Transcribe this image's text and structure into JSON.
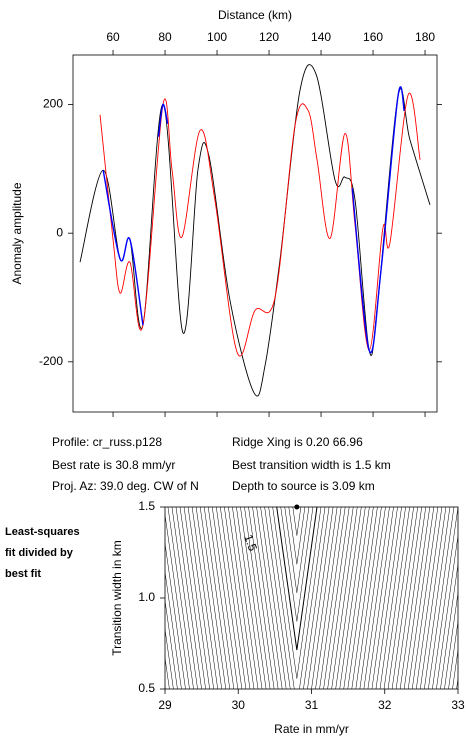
{
  "chart_data": [
    {
      "type": "line",
      "xlabel": "Distance (km)",
      "ylabel": "Anomaly amplitude",
      "xlim": [
        44.6,
        184.6
      ],
      "ylim": [
        -278,
        277
      ],
      "xticks": [
        60,
        80,
        100,
        120,
        140,
        160,
        180
      ],
      "yticks": [
        -200,
        0,
        200
      ],
      "series": [
        {
          "color": "#000000",
          "x": [
            47.3,
            56.2,
            62.7,
            66.5,
            71.5,
            79.2,
            86.9,
            92.7,
            96.9,
            105,
            114.2,
            118.5,
            124.2,
            131.9,
            138.1,
            145.4,
            149.2,
            153.1,
            158.5,
            161.9,
            169.6,
            174.2,
            181.9
          ],
          "values": [
            -45,
            98,
            -40,
            -10,
            -143,
            200,
            -155,
            100,
            120,
            -105,
            -248,
            -205,
            -42,
            222,
            247,
            82,
            87,
            51,
            -182,
            -104,
            213,
            145,
            44
          ]
        },
        {
          "color": "#ff0000",
          "x": [
            55,
            60,
            62.7,
            66.5,
            71.5,
            79.2,
            82.7,
            86.5,
            93.5,
            99.2,
            107.7,
            114.6,
            122.3,
            130,
            135,
            138.5,
            143.5,
            149.2,
            153.1,
            158.5,
            163.8,
            166.5,
            173.5,
            178.1
          ],
          "values": [
            184,
            -10,
            -93,
            -45,
            -143,
            200,
            98,
            -6,
            160,
            51,
            -185,
            -120,
            -100,
            168,
            191,
            113,
            -8,
            155,
            12,
            -182,
            8,
            -15,
            215,
            114
          ]
        },
        {
          "color": "#0000ff",
          "x": [
            56.2,
            62.7,
            66.5,
            71.5,
            72,
            77.5,
            79.2,
            81,
            82,
            152,
            158.5,
            163,
            169.6,
            172
          ],
          "values": [
            98,
            -40,
            -10,
            -143,
            null,
            150,
            200,
            170,
            null,
            70,
            -182,
            -60,
            213,
            190
          ]
        }
      ],
      "annotations": [
        "Profile: cr_russ.p128",
        "Best rate is 30.8 mm/yr",
        "Proj. Az: 39.0 deg. CW of N",
        "Ridge Xing is 0.20 66.96",
        "Best transition width is 1.5 km",
        "Depth to source is   3.09 km"
      ]
    },
    {
      "type": "contour",
      "xlabel": "Rate in mm/yr",
      "ylabel": "Transition width in km",
      "side_label": [
        "Least-squares",
        "fit divided by",
        "best fit"
      ],
      "xlim": [
        29,
        33
      ],
      "ylim": [
        0.5,
        1.5
      ],
      "xticks": [
        29,
        30,
        31,
        32,
        33
      ],
      "yticks": [
        {
          "value": 0.5,
          "label": "0.5"
        },
        {
          "value": 1.0,
          "label": "1.0"
        },
        {
          "value": 1.5,
          "label": "1.5"
        }
      ],
      "best_fit": {
        "x": 30.8,
        "y": 1.5
      },
      "contour_label": "1.5"
    }
  ]
}
